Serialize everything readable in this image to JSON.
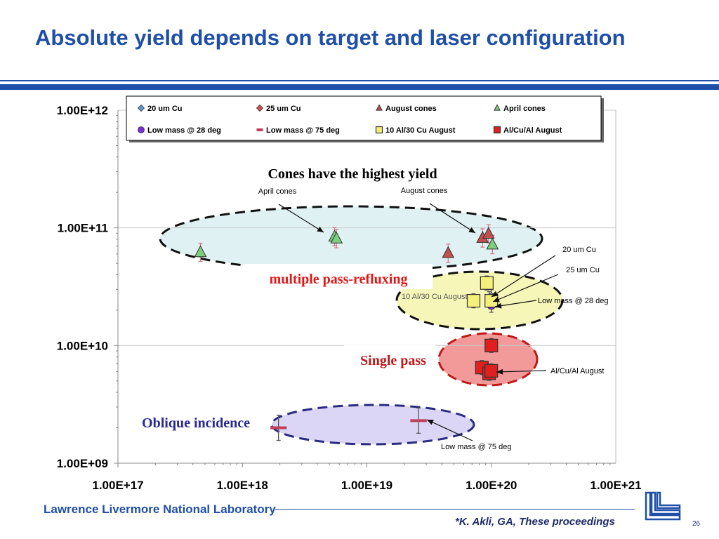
{
  "slide": {
    "title": "Absolute yield depends on target and laser configuration",
    "footer_lab": "Lawrence Livermore National Laboratory",
    "citation": "*K. Akli, GA, These proceedings",
    "page_number": "26"
  },
  "colors": {
    "title": "#1f4fa8",
    "cu20": "#5a9bd5",
    "cu25": "#d94f4f",
    "august_cones": "#c0504d",
    "april_cones": "#7ccf7c",
    "low_mass_28": "#7a2fd6",
    "low_mass_75": "#c0405a",
    "al_cu_10_30": "#f5f07a",
    "al_cu_al": "#e02020"
  },
  "chart_data": {
    "type": "scatter",
    "x_scale": "log",
    "y_scale": "log",
    "xlim": [
      1e+17,
      1e+21
    ],
    "ylim": [
      1000000000.0,
      1000000000000.0
    ],
    "x_tick_labels": [
      "1.00E+17",
      "1.00E+18",
      "1.00E+19",
      "1.00E+20",
      "1.00E+21"
    ],
    "y_tick_labels": [
      "1.00E+09",
      "1.00E+10",
      "1.00E+11",
      "1.00E+12"
    ],
    "grid": "horizontal",
    "legend_position": "top",
    "series": [
      {
        "name": "20 um Cu",
        "marker": "diamond",
        "color": "#5a9bd5",
        "points": [
          [
            1e+20,
            26000000000.0
          ]
        ]
      },
      {
        "name": "25 um Cu",
        "marker": "diamond",
        "color": "#d94f4f",
        "points": [
          [
            9.6e+19,
            25000000000.0
          ]
        ]
      },
      {
        "name": "August cones",
        "marker": "triangle",
        "color": "#c0504d",
        "points": [
          [
            4.5e+19,
            61000000000.0
          ],
          [
            8.5e+19,
            82000000000.0
          ],
          [
            9.5e+19,
            89000000000.0
          ]
        ]
      },
      {
        "name": "April cones",
        "marker": "triangle",
        "color": "#7ccf7c",
        "points": [
          [
            4.6e+17,
            62000000000.0
          ],
          [
            5.5e+18,
            84000000000.0
          ],
          [
            5.7e+18,
            81000000000.0
          ],
          [
            1.02e+20,
            72000000000.0
          ]
        ]
      },
      {
        "name": "Low mass @ 28 deg",
        "marker": "circle",
        "color": "#7a2fd6",
        "points": [
          [
            1e+20,
            22000000000.0
          ]
        ]
      },
      {
        "name": "Low mass @ 75 deg",
        "marker": "dash",
        "color": "#c0405a",
        "points": [
          [
            1.95e+18,
            2000000000.0
          ],
          [
            2.6e+19,
            2300000000.0
          ]
        ]
      },
      {
        "name": "10 Al/30 Cu August",
        "marker": "square",
        "color": "#f5f07a",
        "points": [
          [
            7.2e+19,
            24000000000.0
          ],
          [
            9.2e+19,
            34000000000.0
          ],
          [
            1e+20,
            24000000000.0
          ]
        ]
      },
      {
        "name": "Al/Cu/Al August",
        "marker": "square",
        "color": "#e02020",
        "points": [
          [
            1e+20,
            10000000000.0
          ],
          [
            8.4e+19,
            6500000000.0
          ],
          [
            9.6e+19,
            5800000000.0
          ],
          [
            1e+20,
            6100000000.0
          ]
        ]
      }
    ],
    "annotations": {
      "cones_heading": "Cones have the highest yield",
      "april_cones": "April cones",
      "august_cones": "August cones",
      "multiple_pass": "multiple pass-refluxing",
      "cu20": "20 um Cu",
      "cu25": "25 um Cu",
      "al_cu_10_30": "10 Al/30 Cu August",
      "low_mass_28": "Low mass @ 28 deg",
      "single_pass": "Single pass",
      "al_cu_al": "Al/Cu/Al August",
      "oblique": "Oblique incidence",
      "low_mass_75": "Low mass @ 75 deg"
    }
  }
}
